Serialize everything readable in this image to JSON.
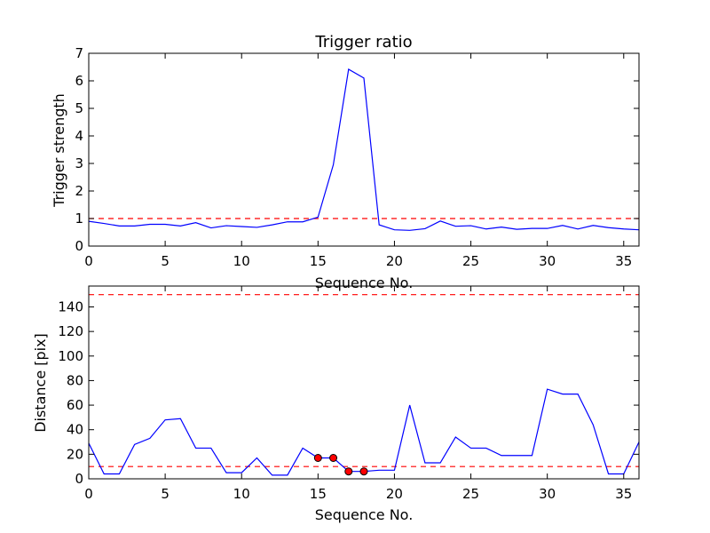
{
  "colors": {
    "line": "#0000ff",
    "threshold": "#ff0000",
    "marker_fill": "#ff0000",
    "marker_edge": "#000000",
    "frame": "#000000",
    "background": "#ffffff"
  },
  "chart_data": [
    {
      "type": "line",
      "title": "Trigger ratio",
      "xlabel": "Sequence No.",
      "ylabel": "Trigger strength",
      "xlim": [
        0,
        36
      ],
      "ylim": [
        0,
        7
      ],
      "xticks": [
        0,
        5,
        10,
        15,
        20,
        25,
        30,
        35
      ],
      "yticks": [
        0,
        1,
        2,
        3,
        4,
        5,
        6,
        7
      ],
      "grid": false,
      "thresholds": [
        1
      ],
      "series": [
        {
          "x": [
            0,
            1,
            2,
            3,
            4,
            5,
            6,
            7,
            8,
            9,
            10,
            11,
            12,
            13,
            14,
            15,
            16,
            17,
            18,
            19,
            20,
            21,
            22,
            23,
            24,
            25,
            26,
            27,
            28,
            29,
            30,
            31,
            32,
            33,
            34,
            35,
            36
          ],
          "values": [
            0.9,
            0.82,
            0.73,
            0.73,
            0.79,
            0.79,
            0.73,
            0.85,
            0.66,
            0.74,
            0.71,
            0.68,
            0.77,
            0.88,
            0.88,
            1.05,
            2.95,
            6.42,
            6.1,
            0.77,
            0.59,
            0.57,
            0.63,
            0.91,
            0.72,
            0.74,
            0.62,
            0.69,
            0.61,
            0.64,
            0.64,
            0.75,
            0.62,
            0.75,
            0.67,
            0.62,
            0.59
          ]
        }
      ]
    },
    {
      "type": "line",
      "title": "",
      "xlabel": "Sequence No.",
      "ylabel": "Distance [pix]",
      "xlim": [
        0,
        36
      ],
      "ylim": [
        0,
        157
      ],
      "xticks": [
        0,
        5,
        10,
        15,
        20,
        25,
        30,
        35
      ],
      "yticks": [
        0,
        20,
        40,
        60,
        80,
        100,
        120,
        140
      ],
      "grid": false,
      "thresholds": [
        10,
        150
      ],
      "series": [
        {
          "x": [
            0,
            1,
            2,
            3,
            4,
            5,
            6,
            7,
            8,
            9,
            10,
            11,
            12,
            13,
            14,
            15,
            16,
            17,
            18,
            19,
            20,
            21,
            22,
            23,
            24,
            25,
            26,
            27,
            28,
            29,
            30,
            31,
            32,
            33,
            34,
            35,
            36
          ],
          "values": [
            29,
            4,
            4,
            28,
            33,
            48,
            49,
            25,
            25,
            5,
            5,
            17,
            3,
            3,
            25,
            17,
            17,
            6,
            6,
            7,
            7,
            60,
            13,
            13,
            34,
            25,
            25,
            19,
            19,
            19,
            73,
            69,
            69,
            44,
            4,
            4,
            30
          ]
        }
      ],
      "markers": {
        "x": [
          15,
          16,
          17,
          18
        ],
        "values": [
          17,
          17,
          6,
          6
        ]
      }
    }
  ]
}
